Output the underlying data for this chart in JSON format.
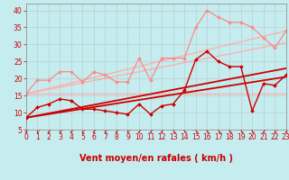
{
  "xlabel": "Vent moyen/en rafales ( km/h )",
  "xlim": [
    0,
    23
  ],
  "ylim": [
    5,
    42
  ],
  "yticks": [
    5,
    10,
    15,
    20,
    25,
    30,
    35,
    40
  ],
  "xticks": [
    0,
    1,
    2,
    3,
    4,
    5,
    6,
    7,
    8,
    9,
    10,
    11,
    12,
    13,
    14,
    15,
    16,
    17,
    18,
    19,
    20,
    21,
    22,
    23
  ],
  "bg_color": "#c5ecee",
  "grid_color": "#b0b0b0",
  "lines": [
    {
      "comment": "flat pink line at 15.5",
      "x": [
        0,
        23
      ],
      "y": [
        15.5,
        15.5
      ],
      "color": "#ffb0b0",
      "lw": 1.0,
      "marker": null,
      "markersize": 0,
      "zorder": 1
    },
    {
      "comment": "pink diagonal lower bound ~15.5 to ~30",
      "x": [
        0,
        23
      ],
      "y": [
        15.5,
        30.5
      ],
      "color": "#ffb0b0",
      "lw": 1.0,
      "marker": null,
      "markersize": 0,
      "zorder": 1
    },
    {
      "comment": "pink diagonal upper bound ~15.5 to ~34",
      "x": [
        0,
        23
      ],
      "y": [
        15.5,
        34.0
      ],
      "color": "#ffb0b0",
      "lw": 1.0,
      "marker": null,
      "markersize": 0,
      "zorder": 1
    },
    {
      "comment": "light pink jagged line with diamonds - rafales",
      "x": [
        0,
        1,
        2,
        3,
        4,
        5,
        6,
        7,
        8,
        9,
        10,
        11,
        12,
        13,
        14,
        15,
        16,
        17,
        18,
        19,
        20,
        21,
        22,
        23
      ],
      "y": [
        15.5,
        19.5,
        19.5,
        22,
        22,
        19,
        22,
        21,
        19,
        19,
        26,
        19.5,
        26,
        26,
        26,
        35,
        40,
        38,
        36.5,
        36.5,
        35,
        32,
        29,
        34
      ],
      "color": "#ff8888",
      "lw": 0.9,
      "marker": "D",
      "markersize": 2.0,
      "zorder": 2
    },
    {
      "comment": "dark red jagged line with diamonds - vent moyen",
      "x": [
        0,
        1,
        2,
        3,
        4,
        5,
        6,
        7,
        8,
        9,
        10,
        11,
        12,
        13,
        14,
        15,
        16,
        17,
        18,
        19,
        20,
        21,
        22,
        23
      ],
      "y": [
        8.5,
        11.5,
        12.5,
        14,
        13.5,
        11,
        11,
        10.5,
        10,
        9.5,
        12.5,
        9.5,
        12,
        12.5,
        16.5,
        25.5,
        28,
        25,
        23.5,
        23.5,
        10.5,
        18.5,
        18,
        21
      ],
      "color": "#cc0000",
      "lw": 1.0,
      "marker": "D",
      "markersize": 2.0,
      "zorder": 3
    },
    {
      "comment": "dark red linear regression upper",
      "x": [
        0,
        23
      ],
      "y": [
        8.5,
        23.0
      ],
      "color": "#cc0000",
      "lw": 1.3,
      "marker": null,
      "markersize": 0,
      "zorder": 2
    },
    {
      "comment": "dark red linear regression lower",
      "x": [
        0,
        23
      ],
      "y": [
        8.5,
        20.5
      ],
      "color": "#cc0000",
      "lw": 1.3,
      "marker": null,
      "markersize": 0,
      "zorder": 2
    }
  ],
  "arrow_symbols": [
    "↓",
    "↓",
    "↓",
    "↓",
    "↓",
    "↓",
    "↓",
    "↓",
    "↓",
    "↓",
    "↓",
    "↓",
    "↓",
    "↓",
    "↓",
    "↓",
    "↓",
    "↓",
    "↓",
    "↓",
    "↓",
    "↓",
    "↓",
    "↓"
  ],
  "xlabel_fontsize": 7,
  "tick_fontsize": 5.5
}
